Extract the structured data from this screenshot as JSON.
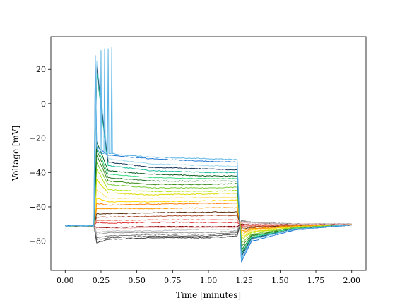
{
  "chart_data": {
    "type": "line",
    "title": "",
    "xlabel": "Time [minutes]",
    "ylabel": "Voltage [mV]",
    "xlim": [
      -0.1,
      2.1
    ],
    "ylim": [
      -97,
      39
    ],
    "xticks": [
      "0.00",
      "0.25",
      "0.50",
      "0.75",
      "1.00",
      "1.25",
      "1.50",
      "1.75",
      "2.00"
    ],
    "yticks": [
      "−80",
      "−60",
      "−40",
      "−20",
      "0",
      "20"
    ],
    "grid": false,
    "legend": "none",
    "stimulus_window": [
      0.2,
      1.2
    ],
    "series": [
      {
        "color": "#3a3a3a",
        "x": [
          0,
          0.2,
          0.22,
          0.3,
          0.6,
          1.0,
          1.2,
          1.23,
          1.3,
          1.6,
          2.0
        ],
        "y": [
          -71,
          -71,
          -81,
          -79,
          -78,
          -78,
          -77,
          -68,
          -69,
          -70,
          -70
        ]
      },
      {
        "color": "#555555",
        "x": [
          0,
          0.2,
          0.22,
          0.3,
          0.6,
          1.0,
          1.2,
          1.23,
          1.3,
          1.6,
          2.0
        ],
        "y": [
          -71,
          -71,
          -79,
          -78,
          -77,
          -77,
          -76,
          -68,
          -69,
          -70,
          -70
        ]
      },
      {
        "color": "#777777",
        "x": [
          0,
          0.2,
          0.22,
          0.3,
          0.6,
          1.0,
          1.2,
          1.23,
          1.3,
          1.6,
          2.0
        ],
        "y": [
          -71,
          -71,
          -78,
          -77,
          -76,
          -76,
          -75,
          -68,
          -69,
          -70,
          -70
        ]
      },
      {
        "color": "#999999",
        "x": [
          0,
          0.2,
          0.22,
          0.3,
          0.6,
          1.0,
          1.2,
          1.23,
          1.3,
          1.6,
          2.0
        ],
        "y": [
          -71,
          -71,
          -76,
          -75,
          -75,
          -75,
          -74,
          -68,
          -69,
          -70,
          -70
        ]
      },
      {
        "color": "#bbbbbb",
        "x": [
          0,
          0.2,
          0.22,
          0.3,
          0.6,
          1.0,
          1.2,
          1.23,
          1.3,
          1.6,
          2.0
        ],
        "y": [
          -71,
          -71,
          -75,
          -74,
          -74,
          -73,
          -73,
          -69,
          -69,
          -70,
          -70
        ]
      },
      {
        "color": "#f0b8b8",
        "x": [
          0,
          0.2,
          0.22,
          0.3,
          0.6,
          1.0,
          1.2,
          1.23,
          1.3,
          1.6,
          2.0
        ],
        "y": [
          -71,
          -71,
          -73,
          -73,
          -72,
          -72,
          -72,
          -69,
          -70,
          -70,
          -70
        ]
      },
      {
        "color": "#8b0000",
        "x": [
          0,
          0.2,
          0.22,
          0.3,
          0.6,
          1.0,
          1.2,
          1.23,
          1.3,
          1.6,
          2.0
        ],
        "y": [
          -71,
          -71,
          -72,
          -72,
          -71.5,
          -71.5,
          -71.5,
          -70,
          -70.5,
          -70.5,
          -70.5
        ]
      },
      {
        "color": "#e03030",
        "x": [
          0,
          0.2,
          0.22,
          0.3,
          0.6,
          1.0,
          1.2,
          1.23,
          1.3,
          1.6,
          2.0
        ],
        "y": [
          -71,
          -71,
          -69,
          -69.5,
          -69,
          -69,
          -69,
          -71,
          -71,
          -71,
          -70.5
        ]
      },
      {
        "color": "#f08070",
        "x": [
          0,
          0.2,
          0.22,
          0.3,
          0.6,
          1.0,
          1.2,
          1.23,
          1.3,
          1.6,
          2.0
        ],
        "y": [
          -71,
          -71,
          -68,
          -68,
          -67.5,
          -67.5,
          -67.5,
          -71.5,
          -71,
          -71,
          -70.5
        ]
      },
      {
        "color": "#b05030",
        "x": [
          0,
          0.2,
          0.22,
          0.3,
          0.6,
          1.0,
          1.2,
          1.23,
          1.3,
          1.6,
          2.0
        ],
        "y": [
          -71,
          -71,
          -66,
          -66,
          -65.5,
          -65,
          -65,
          -72,
          -71.5,
          -71,
          -70.5
        ]
      },
      {
        "color": "#5a2d0c",
        "x": [
          0,
          0.2,
          0.22,
          0.3,
          0.6,
          1.0,
          1.2,
          1.23,
          1.3,
          1.6,
          2.0
        ],
        "y": [
          -71,
          -71,
          -64,
          -64,
          -63.5,
          -63,
          -63,
          -73,
          -72,
          -71,
          -70.5
        ]
      },
      {
        "color": "#ff9900",
        "x": [
          0,
          0.2,
          0.22,
          0.3,
          0.6,
          1.0,
          1.2,
          1.23,
          1.3,
          1.6,
          2.0
        ],
        "y": [
          -71,
          -71,
          -61,
          -61,
          -61,
          -60.5,
          -60.5,
          -74,
          -72.5,
          -71,
          -70.5
        ]
      },
      {
        "color": "#ff7f0e",
        "x": [
          0,
          0.2,
          0.22,
          0.3,
          0.6,
          1.0,
          1.2,
          1.23,
          1.3,
          1.6,
          2.0
        ],
        "y": [
          -71,
          -71,
          -58,
          -59,
          -58.5,
          -58,
          -58,
          -75,
          -73,
          -71.5,
          -70.5
        ]
      },
      {
        "color": "#ffd700",
        "x": [
          0,
          0.2,
          0.22,
          0.3,
          0.6,
          1.0,
          1.2,
          1.23,
          1.3,
          1.6,
          2.0
        ],
        "y": [
          -71,
          -71,
          -55,
          -57,
          -57,
          -56.5,
          -56,
          -76,
          -73.5,
          -71.5,
          -70.5
        ]
      },
      {
        "color": "#ffe680",
        "x": [
          0,
          0.2,
          0.22,
          0.3,
          0.6,
          1.0,
          1.2,
          1.23,
          1.3,
          1.6,
          2.0
        ],
        "y": [
          -71,
          -71,
          -50,
          -55,
          -55,
          -54.5,
          -54.5,
          -77,
          -74,
          -72,
          -70.5
        ]
      },
      {
        "color": "#dcdc00",
        "x": [
          0,
          0.2,
          0.22,
          0.3,
          0.6,
          1.0,
          1.2,
          1.23,
          1.3,
          1.6,
          2.0
        ],
        "y": [
          -71,
          -71,
          -44,
          -52,
          -53,
          -52.5,
          -52,
          -78,
          -74.5,
          -72,
          -70.5
        ]
      },
      {
        "color": "#b5e61d",
        "x": [
          0,
          0.2,
          0.22,
          0.3,
          0.6,
          1.0,
          1.2,
          1.23,
          1.3,
          1.6,
          2.0
        ],
        "y": [
          -71,
          -71,
          -38,
          -50,
          -51,
          -51,
          -50.5,
          -79,
          -75,
          -72,
          -70.5
        ]
      },
      {
        "color": "#7ccd3a",
        "x": [
          0,
          0.2,
          0.22,
          0.3,
          0.6,
          1.0,
          1.2,
          1.23,
          1.3,
          1.6,
          2.0
        ],
        "y": [
          -71,
          -71,
          -34,
          -47,
          -49,
          -49,
          -48.5,
          -81,
          -76,
          -72,
          -70.5
        ]
      },
      {
        "color": "#3c8c1a",
        "x": [
          0,
          0.2,
          0.22,
          0.3,
          0.6,
          1.0,
          1.2,
          1.23,
          1.3,
          1.6,
          2.0
        ],
        "y": [
          -71,
          -71,
          -30,
          -45,
          -47,
          -47,
          -46.5,
          -83,
          -76.5,
          -72.5,
          -70.5
        ]
      },
      {
        "color": "#2e7d32",
        "x": [
          0,
          0.2,
          0.22,
          0.3,
          0.6,
          1.0,
          1.2,
          1.23,
          1.3,
          1.6,
          2.0
        ],
        "y": [
          -71,
          -71,
          -27,
          -43,
          -45,
          -45,
          -45,
          -85,
          -77,
          -72.5,
          -70.5
        ]
      },
      {
        "color": "#3ddc84",
        "x": [
          0,
          0.2,
          0.22,
          0.3,
          0.6,
          1.0,
          1.2,
          1.23,
          1.3,
          1.6,
          2.0
        ],
        "y": [
          -71,
          -71,
          -25,
          -41,
          -43,
          -43.5,
          -43.5,
          -86,
          -77.5,
          -72.5,
          -70.5
        ]
      },
      {
        "color": "#0b5d1e",
        "x": [
          0,
          0.2,
          0.22,
          0.3,
          0.6,
          1.0,
          1.2,
          1.23,
          1.3,
          1.6,
          2.0
        ],
        "y": [
          -71,
          -71,
          -22,
          -39,
          -41,
          -42,
          -42,
          -87,
          -78,
          -73,
          -70.5
        ]
      },
      {
        "color": "#1abc9c",
        "x": [
          0,
          0.2,
          0.22,
          0.3,
          0.6,
          1.0,
          1.2,
          1.23,
          1.3,
          1.6,
          2.0
        ],
        "y": [
          -71,
          -71,
          18,
          -36,
          -39,
          -40,
          -40,
          -88,
          -78,
          -73,
          -70.5
        ]
      },
      {
        "color": "#1b3a5c",
        "x": [
          0,
          0.2,
          0.22,
          0.3,
          0.6,
          1.0,
          1.2,
          1.23,
          1.3,
          1.6,
          2.0
        ],
        "y": [
          -71,
          -71,
          22,
          -34,
          -37,
          -38,
          -38.5,
          -89,
          -78.5,
          -73,
          -70.5
        ]
      },
      {
        "color": "#9fd8f0",
        "x": [
          0,
          0.2,
          0.22,
          0.3,
          0.6,
          1.0,
          1.2,
          1.23,
          1.3,
          1.6,
          2.0
        ],
        "y": [
          -71,
          -71,
          25,
          -32,
          -35,
          -36,
          -36.5,
          -90,
          -79,
          -73,
          -70.5
        ]
      },
      {
        "color": "#1f77d4",
        "x": [
          0,
          0.2,
          0.21,
          0.22,
          0.3,
          0.6,
          1.0,
          1.2,
          1.23,
          1.3,
          1.6,
          2.0
        ],
        "y": [
          -71,
          -71,
          28,
          -25,
          -30,
          -32,
          -33.5,
          -34,
          -92,
          -80,
          -73.5,
          -70.5
        ]
      },
      {
        "color": "#5ab4e6",
        "x": [
          0,
          0.2,
          0.21,
          0.22,
          0.245,
          0.25,
          0.255,
          0.27,
          0.275,
          0.28,
          0.295,
          0.3,
          0.305,
          0.32,
          0.325,
          0.33,
          0.4,
          0.6,
          1.0,
          1.2,
          1.23,
          1.3,
          1.6,
          2.0
        ],
        "y": [
          -71,
          -71,
          27,
          -26,
          -29,
          31,
          -29,
          -29,
          32,
          -29,
          -29,
          32,
          -29,
          -29,
          33,
          -29,
          -30,
          -31,
          -32,
          -32.5,
          -91,
          -79,
          -73,
          -70.5
        ]
      }
    ]
  }
}
